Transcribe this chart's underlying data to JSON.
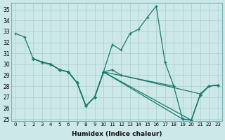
{
  "xlabel": "Humidex (Indice chaleur)",
  "xlim": [
    -0.5,
    23.5
  ],
  "ylim": [
    24.8,
    35.6
  ],
  "yticks": [
    25,
    26,
    27,
    28,
    29,
    30,
    31,
    32,
    33,
    34,
    35
  ],
  "xticks": [
    0,
    1,
    2,
    3,
    4,
    5,
    6,
    7,
    8,
    9,
    10,
    11,
    12,
    13,
    14,
    15,
    16,
    17,
    18,
    19,
    20,
    21,
    22,
    23
  ],
  "bg_color": "#cce8e8",
  "line_color": "#1a7a6e",
  "grid_color": "#aacccc",
  "lines": [
    {
      "x": [
        0,
        1,
        2,
        3,
        4,
        5,
        6,
        7,
        8,
        9,
        10,
        11,
        12,
        13,
        14,
        15,
        16,
        17,
        18
      ],
      "y": [
        32.8,
        32.5,
        30.5,
        30.2,
        30.0,
        29.5,
        29.3,
        28.3,
        26.2,
        27.0,
        29.3,
        31.8,
        31.3,
        32.8,
        33.2,
        34.3,
        35.3,
        30.2,
        28.0
      ]
    },
    {
      "x": [
        2,
        3,
        4,
        5,
        6,
        7,
        8,
        9,
        10,
        11,
        12,
        21,
        22,
        23
      ],
      "y": [
        30.5,
        30.2,
        30.0,
        29.5,
        29.3,
        28.3,
        26.2,
        27.0,
        29.3,
        29.5,
        29.0,
        27.3,
        28.0,
        28.1
      ]
    },
    {
      "x": [
        2,
        3,
        4,
        5,
        6,
        7,
        8,
        9,
        10,
        20,
        21,
        22,
        23
      ],
      "y": [
        30.5,
        30.2,
        30.0,
        29.5,
        29.3,
        28.3,
        26.2,
        27.0,
        29.3,
        24.9,
        27.2,
        28.0,
        28.1
      ]
    },
    {
      "x": [
        2,
        3,
        4,
        5,
        6,
        7,
        8,
        9,
        10,
        18,
        19,
        20,
        21,
        22,
        23
      ],
      "y": [
        30.5,
        30.2,
        30.0,
        29.5,
        29.3,
        28.3,
        26.2,
        27.0,
        29.3,
        28.0,
        25.0,
        24.9,
        27.2,
        28.0,
        28.1
      ]
    },
    {
      "x": [
        2,
        3,
        4,
        5,
        6,
        7,
        8,
        9,
        10,
        19,
        20,
        21,
        22,
        23
      ],
      "y": [
        30.5,
        30.2,
        30.0,
        29.5,
        29.3,
        28.3,
        26.2,
        27.0,
        29.3,
        25.0,
        24.9,
        27.2,
        28.0,
        28.1
      ]
    }
  ]
}
